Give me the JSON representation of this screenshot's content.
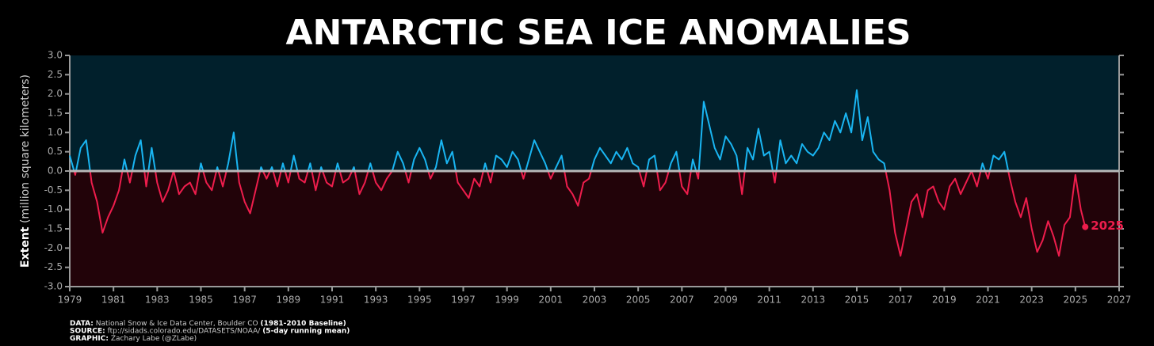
{
  "chart_data": {
    "type": "line",
    "title": "ANTARCTIC SEA ICE ANOMALIES",
    "y_label": {
      "bold": "Extent",
      "rest": "(million square kilometers)"
    },
    "x": [
      1979,
      1979.25,
      1979.5,
      1979.75,
      1980,
      1980.25,
      1980.5,
      1980.75,
      1981,
      1981.25,
      1981.5,
      1981.75,
      1982,
      1982.25,
      1982.5,
      1982.75,
      1983,
      1983.25,
      1983.5,
      1983.75,
      1984,
      1984.25,
      1984.5,
      1984.75,
      1985,
      1985.25,
      1985.5,
      1985.75,
      1986,
      1986.25,
      1986.5,
      1986.75,
      1987,
      1987.25,
      1987.5,
      1987.75,
      1988,
      1988.25,
      1988.5,
      1988.75,
      1989,
      1989.25,
      1989.5,
      1989.75,
      1990,
      1990.25,
      1990.5,
      1990.75,
      1991,
      1991.25,
      1991.5,
      1991.75,
      1992,
      1992.25,
      1992.5,
      1992.75,
      1993,
      1993.25,
      1993.5,
      1993.75,
      1994,
      1994.25,
      1994.5,
      1994.75,
      1995,
      1995.25,
      1995.5,
      1995.75,
      1996,
      1996.25,
      1996.5,
      1996.75,
      1997,
      1997.25,
      1997.5,
      1997.75,
      1998,
      1998.25,
      1998.5,
      1998.75,
      1999,
      1999.25,
      1999.5,
      1999.75,
      2000,
      2000.25,
      2000.5,
      2000.75,
      2001,
      2001.25,
      2001.5,
      2001.75,
      2002,
      2002.25,
      2002.5,
      2002.75,
      2003,
      2003.25,
      2003.5,
      2003.75,
      2004,
      2004.25,
      2004.5,
      2004.75,
      2005,
      2005.25,
      2005.5,
      2005.75,
      2006,
      2006.25,
      2006.5,
      2006.75,
      2007,
      2007.25,
      2007.5,
      2007.75,
      2008,
      2008.25,
      2008.5,
      2008.75,
      2009,
      2009.25,
      2009.5,
      2009.75,
      2010,
      2010.25,
      2010.5,
      2010.75,
      2011,
      2011.25,
      2011.5,
      2011.75,
      2012,
      2012.25,
      2012.5,
      2012.75,
      2013,
      2013.25,
      2013.5,
      2013.75,
      2014,
      2014.25,
      2014.5,
      2014.75,
      2015,
      2015.25,
      2015.5,
      2015.75,
      2016,
      2016.25,
      2016.5,
      2016.75,
      2017,
      2017.25,
      2017.5,
      2017.75,
      2018,
      2018.25,
      2018.5,
      2018.75,
      2019,
      2019.25,
      2019.5,
      2019.75,
      2020,
      2020.25,
      2020.5,
      2020.75,
      2021,
      2021.25,
      2021.5,
      2021.75,
      2022,
      2022.25,
      2022.5,
      2022.75,
      2023,
      2023.25,
      2023.5,
      2023.75,
      2024,
      2024.25,
      2024.5,
      2024.75,
      2025,
      2025.25,
      2025.45
    ],
    "series": [
      {
        "color": "#19b5f2",
        "negative_color": "#ee1d4c",
        "values": [
          0.4,
          -0.1,
          0.6,
          0.8,
          -0.3,
          -0.8,
          -1.6,
          -1.2,
          -0.9,
          -0.5,
          0.3,
          -0.3,
          0.4,
          0.8,
          -0.4,
          0.6,
          -0.3,
          -0.8,
          -0.5,
          0.0,
          -0.6,
          -0.4,
          -0.3,
          -0.6,
          0.2,
          -0.3,
          -0.5,
          0.1,
          -0.4,
          0.2,
          1.0,
          -0.3,
          -0.8,
          -1.1,
          -0.5,
          0.1,
          -0.2,
          0.1,
          -0.4,
          0.2,
          -0.3,
          0.4,
          -0.2,
          -0.3,
          0.2,
          -0.5,
          0.1,
          -0.3,
          -0.4,
          0.2,
          -0.3,
          -0.2,
          0.1,
          -0.6,
          -0.3,
          0.2,
          -0.3,
          -0.5,
          -0.2,
          0.0,
          0.5,
          0.2,
          -0.3,
          0.3,
          0.6,
          0.3,
          -0.2,
          0.1,
          0.8,
          0.2,
          0.5,
          -0.3,
          -0.5,
          -0.7,
          -0.2,
          -0.4,
          0.2,
          -0.3,
          0.4,
          0.3,
          0.1,
          0.5,
          0.3,
          -0.2,
          0.3,
          0.8,
          0.5,
          0.2,
          -0.2,
          0.1,
          0.4,
          -0.4,
          -0.6,
          -0.9,
          -0.3,
          -0.2,
          0.3,
          0.6,
          0.4,
          0.2,
          0.5,
          0.3,
          0.6,
          0.2,
          0.1,
          -0.4,
          0.3,
          0.4,
          -0.5,
          -0.3,
          0.2,
          0.5,
          -0.4,
          -0.6,
          0.3,
          -0.2,
          1.8,
          1.2,
          0.6,
          0.3,
          0.9,
          0.7,
          0.4,
          -0.6,
          0.6,
          0.3,
          1.1,
          0.4,
          0.5,
          -0.3,
          0.8,
          0.2,
          0.4,
          0.2,
          0.7,
          0.5,
          0.4,
          0.6,
          1.0,
          0.8,
          1.3,
          1.0,
          1.5,
          1.0,
          2.1,
          0.8,
          1.4,
          0.5,
          0.3,
          0.2,
          -0.5,
          -1.6,
          -2.2,
          -1.5,
          -0.8,
          -0.6,
          -1.2,
          -0.5,
          -0.4,
          -0.8,
          -1.0,
          -0.4,
          -0.2,
          -0.6,
          -0.3,
          0.0,
          -0.4,
          0.2,
          -0.2,
          0.4,
          0.3,
          0.5,
          -0.2,
          -0.8,
          -1.2,
          -0.7,
          -1.5,
          -2.1,
          -1.8,
          -1.3,
          -1.7,
          -2.2,
          -1.4,
          -1.2,
          -0.1,
          -1.0,
          -1.45
        ]
      }
    ],
    "annotation": "2025",
    "xlim": [
      1979,
      2027
    ],
    "xticks": [
      1979,
      1981,
      1983,
      1985,
      1987,
      1989,
      1991,
      1993,
      1995,
      1997,
      1999,
      2001,
      2003,
      2005,
      2007,
      2009,
      2011,
      2013,
      2015,
      2017,
      2019,
      2021,
      2023,
      2025,
      2027
    ],
    "ylim": [
      -3,
      3
    ],
    "yticks": [
      {
        "value": -3,
        "label": "-3.0"
      },
      -2.5,
      {
        "value": -2,
        "label": "-2.0"
      },
      -1.5,
      {
        "value": -1,
        "label": "-1.0"
      },
      -0.5,
      {
        "value": 0,
        "label": "0.0"
      },
      0.5,
      {
        "value": 1,
        "label": "1.0"
      },
      1.5,
      {
        "value": 2,
        "label": "2.0"
      },
      2.5,
      {
        "value": 3,
        "label": "3.0"
      }
    ],
    "background_above": "#01202c",
    "background_below": "#220309",
    "zero_line_color": "#b8b8b8",
    "footer": [
      {
        "bold": "DATA:",
        "text": "National Snow & Ice Data Center, Boulder CO",
        "bold2": "(1981-2010 Baseline)"
      },
      {
        "bold": "SOURCE:",
        "text": "ftp://sidads.colorado.edu/DATASETS/NOAA/",
        "bold2": "(5-day running mean)"
      },
      {
        "bold": "GRAPHIC:",
        "text": "Zachary Labe (@ZLabe)"
      }
    ]
  }
}
